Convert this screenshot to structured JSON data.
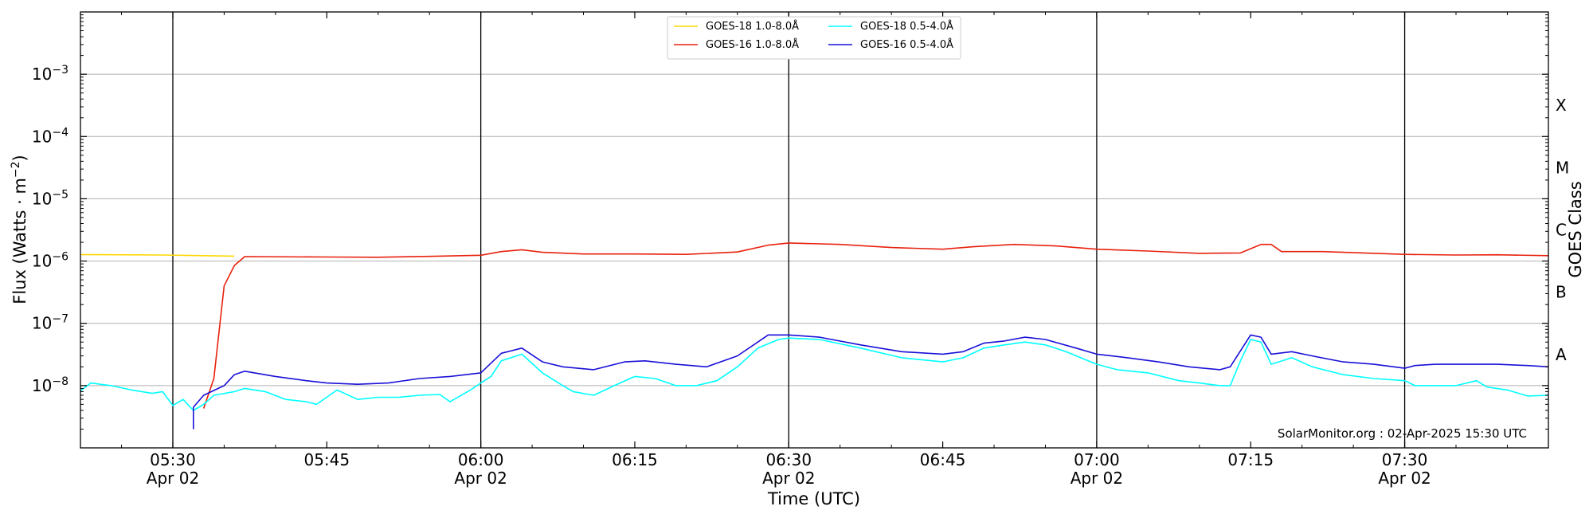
{
  "chart_data": {
    "type": "line",
    "title": "",
    "xlabel": "Time (UTC)",
    "ylabel": "Flux (Watts · m",
    "ylabel_sup": "−2",
    "ylabel_close": ")",
    "y2label": "GOES Class",
    "yscale": "log",
    "xlim": [
      "05:21",
      "07:44"
    ],
    "ylim": [
      1e-09,
      0.01
    ],
    "y_ticks": [
      {
        "value": 1e-08,
        "base": "10",
        "exp": "−8"
      },
      {
        "value": 1e-07,
        "base": "10",
        "exp": "−7"
      },
      {
        "value": 1e-06,
        "base": "10",
        "exp": "−6"
      },
      {
        "value": 1e-05,
        "base": "10",
        "exp": "−5"
      },
      {
        "value": 0.0001,
        "base": "10",
        "exp": "−4"
      },
      {
        "value": 0.001,
        "base": "10",
        "exp": "−3"
      }
    ],
    "x_ticks": [
      {
        "time": "05:30",
        "label": "05:30",
        "date": "Apr 02"
      },
      {
        "time": "05:45",
        "label": "05:45",
        "date": ""
      },
      {
        "time": "06:00",
        "label": "06:00",
        "date": "Apr 02"
      },
      {
        "time": "06:15",
        "label": "06:15",
        "date": ""
      },
      {
        "time": "06:30",
        "label": "06:30",
        "date": "Apr 02"
      },
      {
        "time": "06:45",
        "label": "06:45",
        "date": ""
      },
      {
        "time": "07:00",
        "label": "07:00",
        "date": "Apr 02"
      },
      {
        "time": "07:15",
        "label": "07:15",
        "date": ""
      },
      {
        "time": "07:30",
        "label": "07:30",
        "date": "Apr 02"
      }
    ],
    "vertical_lines": [
      "05:30",
      "06:00",
      "06:30",
      "07:00",
      "07:30"
    ],
    "goes_classes": [
      {
        "label": "A",
        "value": 3.16e-08
      },
      {
        "label": "B",
        "value": 3.16e-07
      },
      {
        "label": "C",
        "value": 3.16e-06
      },
      {
        "label": "M",
        "value": 3.16e-05
      },
      {
        "label": "X",
        "value": 0.000316
      }
    ],
    "grid": "horizontal",
    "legend_position": "top-center",
    "credit": "SolarMonitor.org : 02-Apr-2025 15:30 UTC",
    "series": [
      {
        "name": "GOES-18 1.0-8.0Å",
        "color": "#ffd700",
        "points": [
          [
            "05:21",
            1.27e-06
          ],
          [
            "05:25",
            1.26e-06
          ],
          [
            "05:29",
            1.25e-06
          ],
          [
            "05:33",
            1.22e-06
          ],
          [
            "05:36",
            1.2e-06
          ]
        ]
      },
      {
        "name": "GOES-16 1.0-8.0Å",
        "color": "#e8210e",
        "points": [
          [
            "05:33",
            4.3e-09
          ],
          [
            "05:34",
            1.3e-08
          ],
          [
            "05:35",
            4e-07
          ],
          [
            "05:36",
            8.5e-07
          ],
          [
            "05:37",
            1.18e-06
          ],
          [
            "05:45",
            1.16e-06
          ],
          [
            "05:50",
            1.15e-06
          ],
          [
            "05:55",
            1.19e-06
          ],
          [
            "06:00",
            1.24e-06
          ],
          [
            "06:02",
            1.42e-06
          ],
          [
            "06:04",
            1.52e-06
          ],
          [
            "06:06",
            1.38e-06
          ],
          [
            "06:10",
            1.3e-06
          ],
          [
            "06:15",
            1.3e-06
          ],
          [
            "06:20",
            1.28e-06
          ],
          [
            "06:25",
            1.4e-06
          ],
          [
            "06:28",
            1.8e-06
          ],
          [
            "06:30",
            1.95e-06
          ],
          [
            "06:35",
            1.85e-06
          ],
          [
            "06:40",
            1.65e-06
          ],
          [
            "06:45",
            1.55e-06
          ],
          [
            "06:48",
            1.7e-06
          ],
          [
            "06:52",
            1.85e-06
          ],
          [
            "06:56",
            1.75e-06
          ],
          [
            "07:00",
            1.55e-06
          ],
          [
            "07:05",
            1.45e-06
          ],
          [
            "07:10",
            1.33e-06
          ],
          [
            "07:14",
            1.35e-06
          ],
          [
            "07:16",
            1.85e-06
          ],
          [
            "07:17",
            1.85e-06
          ],
          [
            "07:18",
            1.42e-06
          ],
          [
            "07:22",
            1.42e-06
          ],
          [
            "07:26",
            1.35e-06
          ],
          [
            "07:30",
            1.28e-06
          ],
          [
            "07:35",
            1.25e-06
          ],
          [
            "07:39",
            1.26e-06
          ],
          [
            "07:44",
            1.22e-06
          ]
        ]
      },
      {
        "name": "GOES-18 0.5-4.0Å",
        "color": "#00ffff",
        "points": [
          [
            "05:21",
            8.2e-09
          ],
          [
            "05:22",
            1.1e-08
          ],
          [
            "05:24",
            1e-08
          ],
          [
            "05:26",
            8.5e-09
          ],
          [
            "05:28",
            7.5e-09
          ],
          [
            "05:29",
            8e-09
          ],
          [
            "05:30",
            4.8e-09
          ],
          [
            "05:31",
            6e-09
          ],
          [
            "05:32",
            4e-09
          ],
          [
            "05:33",
            5e-09
          ],
          [
            "05:34",
            7e-09
          ],
          [
            "05:36",
            8e-09
          ],
          [
            "05:37",
            9e-09
          ],
          [
            "05:39",
            8e-09
          ],
          [
            "05:41",
            6e-09
          ],
          [
            "05:43",
            5.5e-09
          ],
          [
            "05:44",
            5e-09
          ],
          [
            "05:46",
            8.5e-09
          ],
          [
            "05:48",
            6e-09
          ],
          [
            "05:50",
            6.5e-09
          ],
          [
            "05:52",
            6.5e-09
          ],
          [
            "05:54",
            7e-09
          ],
          [
            "05:56",
            7.2e-09
          ],
          [
            "05:57",
            5.5e-09
          ],
          [
            "05:59",
            8.5e-09
          ],
          [
            "06:00",
            1.1e-08
          ],
          [
            "06:01",
            1.4e-08
          ],
          [
            "06:02",
            2.5e-08
          ],
          [
            "06:04",
            3.2e-08
          ],
          [
            "06:06",
            1.6e-08
          ],
          [
            "06:08",
            1e-08
          ],
          [
            "06:09",
            8e-09
          ],
          [
            "06:11",
            7e-09
          ],
          [
            "06:13",
            1e-08
          ],
          [
            "06:15",
            1.4e-08
          ],
          [
            "06:17",
            1.3e-08
          ],
          [
            "06:19",
            1e-08
          ],
          [
            "06:21",
            1e-08
          ],
          [
            "06:23",
            1.2e-08
          ],
          [
            "06:25",
            2e-08
          ],
          [
            "06:27",
            4e-08
          ],
          [
            "06:29",
            5.5e-08
          ],
          [
            "06:30",
            5.8e-08
          ],
          [
            "06:33",
            5.5e-08
          ],
          [
            "06:37",
            4e-08
          ],
          [
            "06:41",
            2.8e-08
          ],
          [
            "06:45",
            2.4e-08
          ],
          [
            "06:47",
            2.8e-08
          ],
          [
            "06:49",
            4e-08
          ],
          [
            "06:51",
            4.5e-08
          ],
          [
            "06:53",
            5e-08
          ],
          [
            "06:55",
            4.5e-08
          ],
          [
            "06:57",
            3.5e-08
          ],
          [
            "07:00",
            2.2e-08
          ],
          [
            "07:02",
            1.8e-08
          ],
          [
            "07:05",
            1.6e-08
          ],
          [
            "07:08",
            1.2e-08
          ],
          [
            "07:10",
            1.1e-08
          ],
          [
            "07:12",
            1e-08
          ],
          [
            "07:13",
            1e-08
          ],
          [
            "07:14",
            2.5e-08
          ],
          [
            "07:15",
            5.5e-08
          ],
          [
            "07:16",
            5e-08
          ],
          [
            "07:17",
            2.2e-08
          ],
          [
            "07:19",
            2.8e-08
          ],
          [
            "07:21",
            2e-08
          ],
          [
            "07:24",
            1.5e-08
          ],
          [
            "07:27",
            1.3e-08
          ],
          [
            "07:30",
            1.2e-08
          ],
          [
            "07:31",
            1e-08
          ],
          [
            "07:33",
            1e-08
          ],
          [
            "07:35",
            1e-08
          ],
          [
            "07:37",
            1.2e-08
          ],
          [
            "07:38",
            9.5e-09
          ],
          [
            "07:40",
            8.5e-09
          ],
          [
            "07:42",
            6.8e-09
          ],
          [
            "07:44",
            7e-09
          ]
        ]
      },
      {
        "name": "GOES-16 0.5-4.0Å",
        "color": "#1a10d8",
        "points": [
          [
            "05:32",
            2e-09
          ],
          [
            "05:32",
            4.5e-09
          ],
          [
            "05:33",
            7e-09
          ],
          [
            "05:35",
            1e-08
          ],
          [
            "05:36",
            1.5e-08
          ],
          [
            "05:37",
            1.7e-08
          ],
          [
            "05:40",
            1.4e-08
          ],
          [
            "05:43",
            1.2e-08
          ],
          [
            "05:45",
            1.1e-08
          ],
          [
            "05:48",
            1.05e-08
          ],
          [
            "05:51",
            1.1e-08
          ],
          [
            "05:54",
            1.3e-08
          ],
          [
            "05:57",
            1.4e-08
          ],
          [
            "06:00",
            1.6e-08
          ],
          [
            "06:02",
            3.3e-08
          ],
          [
            "06:04",
            4e-08
          ],
          [
            "06:06",
            2.4e-08
          ],
          [
            "06:08",
            2e-08
          ],
          [
            "06:11",
            1.8e-08
          ],
          [
            "06:14",
            2.4e-08
          ],
          [
            "06:16",
            2.5e-08
          ],
          [
            "06:19",
            2.2e-08
          ],
          [
            "06:22",
            2e-08
          ],
          [
            "06:25",
            3e-08
          ],
          [
            "06:28",
            6.5e-08
          ],
          [
            "06:30",
            6.5e-08
          ],
          [
            "06:33",
            6e-08
          ],
          [
            "06:37",
            4.5e-08
          ],
          [
            "06:41",
            3.5e-08
          ],
          [
            "06:45",
            3.2e-08
          ],
          [
            "06:47",
            3.5e-08
          ],
          [
            "06:49",
            4.8e-08
          ],
          [
            "06:51",
            5.2e-08
          ],
          [
            "06:53",
            6e-08
          ],
          [
            "06:55",
            5.5e-08
          ],
          [
            "06:58",
            4e-08
          ],
          [
            "07:00",
            3.2e-08
          ],
          [
            "07:03",
            2.8e-08
          ],
          [
            "07:06",
            2.4e-08
          ],
          [
            "07:09",
            2e-08
          ],
          [
            "07:12",
            1.8e-08
          ],
          [
            "07:13",
            2e-08
          ],
          [
            "07:15",
            6.5e-08
          ],
          [
            "07:16",
            6e-08
          ],
          [
            "07:17",
            3.2e-08
          ],
          [
            "07:19",
            3.5e-08
          ],
          [
            "07:21",
            3e-08
          ],
          [
            "07:24",
            2.4e-08
          ],
          [
            "07:27",
            2.2e-08
          ],
          [
            "07:30",
            1.9e-08
          ],
          [
            "07:31",
            2.1e-08
          ],
          [
            "07:33",
            2.2e-08
          ],
          [
            "07:36",
            2.2e-08
          ],
          [
            "07:39",
            2.2e-08
          ],
          [
            "07:42",
            2.1e-08
          ],
          [
            "07:44",
            2e-08
          ]
        ]
      }
    ]
  }
}
